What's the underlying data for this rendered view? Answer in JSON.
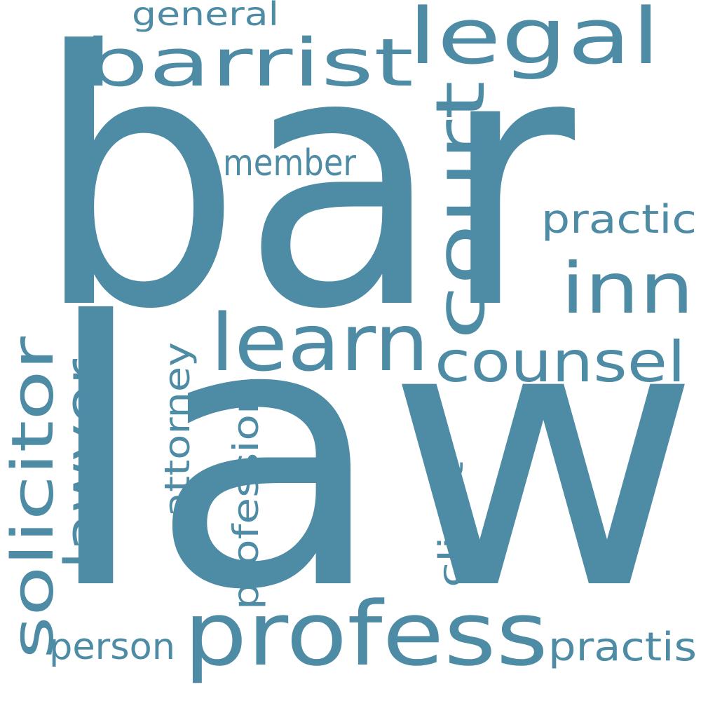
{
  "cloud": {
    "text_color": "#4e8ba5",
    "background": "#ffffff",
    "words": {
      "bar": "bar",
      "law": "law",
      "barrist": "barrist",
      "legal": "legal",
      "general": "general",
      "court": "court",
      "inn": "inn",
      "learn": "learn",
      "counsel": "counsel",
      "member": "member",
      "practic": "practic",
      "solicitor": "solicitor",
      "lawyer": "lawyer",
      "attorney": "attorney",
      "profession": "profession",
      "client": "client",
      "profess": "profess",
      "person": "person",
      "practis": "practis"
    }
  }
}
